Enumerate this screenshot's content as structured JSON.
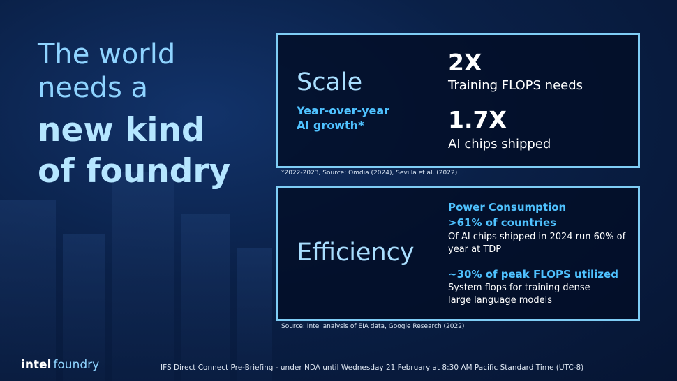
{
  "headline": {
    "lines": [
      "The world",
      "needs a",
      "new kind",
      "of foundry"
    ]
  },
  "scale_panel": {
    "title": "Scale",
    "subtitle": "Year-over-year AI growth*",
    "stats": [
      {
        "value": "2X",
        "label": "Training FLOPS needs"
      },
      {
        "value": "1.7X",
        "label": "AI chips shipped"
      }
    ],
    "footnote": "*2022-2023, Source: Omdia (2024), Sevilla et al. (2022)"
  },
  "efficiency_panel": {
    "title": "Efficiency",
    "items": [
      {
        "heading": "Power Consumption",
        "stat": ">61% of countries",
        "text": "Of AI chips shipped in 2024 run 60% of year at TDP"
      },
      {
        "stat": "~30% of peak FLOPS utilized",
        "text": "System flops for training dense large language models"
      }
    ],
    "source": "Source: Intel analysis of EIA data, Google Research (2022)"
  },
  "footer": {
    "logo_intel": "intel",
    "logo_foundry": "foundry",
    "note": "IFS Direct Connect Pre-Briefing - under NDA until Wednesday 21 February at 8:30 AM Pacific Standard Time (UTC-8)"
  }
}
